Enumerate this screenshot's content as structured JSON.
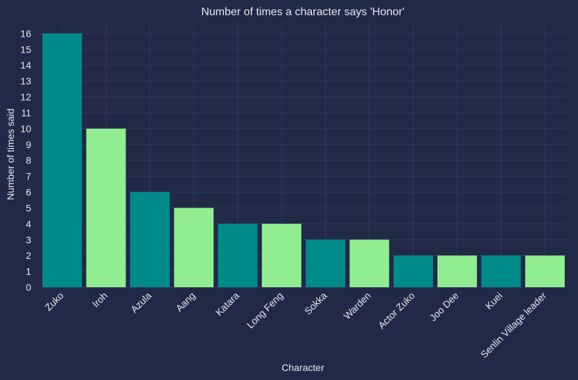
{
  "chart_data": {
    "type": "bar",
    "title": "Number of times a character says 'Honor'",
    "xlabel": "Character",
    "ylabel": "Number of times said",
    "categories": [
      "Zuko",
      "Iroh",
      "Azula",
      "Aang",
      "Katara",
      "Long Feng",
      "Sokka",
      "Warden",
      "Actor Zuko",
      "Joo Dee",
      "Kuei",
      "Senlin Village leader"
    ],
    "values": [
      16,
      10,
      6,
      5,
      4,
      4,
      3,
      3,
      2,
      2,
      2,
      2
    ],
    "yticks": [
      0,
      1,
      2,
      3,
      4,
      5,
      6,
      7,
      8,
      9,
      10,
      11,
      12,
      13,
      14,
      15,
      16
    ],
    "ylim": [
      0,
      16.8
    ],
    "grid": true,
    "colors": [
      "#008b8b",
      "#90ee90"
    ],
    "background": "#212946"
  }
}
